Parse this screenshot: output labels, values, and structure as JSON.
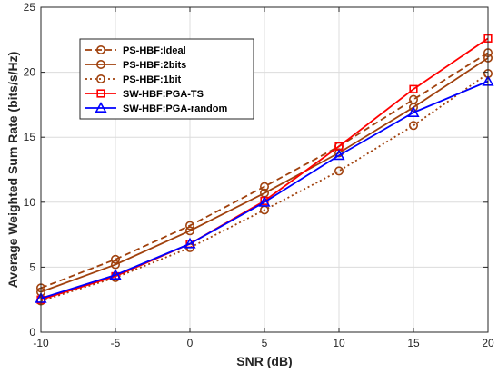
{
  "chart_data": {
    "type": "line",
    "title": "",
    "xlabel": "SNR (dB)",
    "ylabel": "Average Weighted Sum Rate (bits/s/Hz)",
    "x": [
      -10,
      -5,
      0,
      5,
      10,
      15,
      20
    ],
    "xlim": [
      -10,
      20
    ],
    "ylim": [
      0,
      25
    ],
    "xticks": [
      "-10",
      "-5",
      "0",
      "5",
      "10",
      "15",
      "20"
    ],
    "yticks": [
      "0",
      "5",
      "10",
      "15",
      "20",
      "25"
    ],
    "grid": true,
    "legend_position": "top-left",
    "series": [
      {
        "name": "PS-HBF:Ideal",
        "values": [
          3.4,
          5.6,
          8.2,
          11.2,
          14.3,
          17.9,
          21.5
        ],
        "color": "#a0410d",
        "line_style": "dashed",
        "marker": "circle"
      },
      {
        "name": "PS-HBF:2bits",
        "values": [
          3.1,
          5.2,
          7.8,
          10.7,
          13.8,
          17.3,
          21.1
        ],
        "color": "#a0410d",
        "line_style": "solid",
        "marker": "circle"
      },
      {
        "name": "PS-HBF:1bit",
        "values": [
          2.4,
          4.2,
          6.5,
          9.4,
          12.4,
          15.9,
          19.9
        ],
        "color": "#a0410d",
        "line_style": "dotted",
        "marker": "circle"
      },
      {
        "name": "SW-HBF:PGA-TS",
        "values": [
          2.5,
          4.3,
          6.8,
          10.1,
          14.3,
          18.7,
          22.6
        ],
        "color": "#ff0000",
        "line_style": "solid",
        "marker": "square"
      },
      {
        "name": "SW-HBF:PGA-random",
        "values": [
          2.6,
          4.4,
          6.8,
          10.0,
          13.6,
          16.9,
          19.3
        ],
        "color": "#0000ff",
        "line_style": "solid",
        "marker": "triangle"
      }
    ]
  }
}
